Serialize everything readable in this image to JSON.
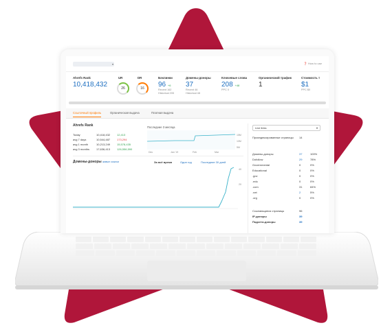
{
  "colors": {
    "star": "#b0163a",
    "accent_blue": "#1e6fc0",
    "accent_orange": "#ff7a00",
    "positive": "#30a14e",
    "negative": "#e03b3b",
    "chart_line": "#39b2c9"
  },
  "header": {
    "how_to_use": "How to use"
  },
  "metrics": {
    "ahrefs_rank": {
      "label": "Ahrefs Rank",
      "value": "10,418,432"
    },
    "ur": {
      "label": "UR",
      "value": "26"
    },
    "dr": {
      "label": "DR",
      "value": "16"
    },
    "backlinks": {
      "label": "Бэклинки",
      "value": "96",
      "delta": "+6",
      "recent": "Recent 162",
      "historical": "Historical 205"
    },
    "ref_domains": {
      "label": "Домены-доноры",
      "value": "37",
      "recent": "Recent 46",
      "historical": "Historical 48"
    },
    "keywords": {
      "label": "Ключевые слова",
      "value": "208",
      "delta": "+48",
      "ppc": "PPC 0"
    },
    "organic_traffic": {
      "label": "Органический трафик",
      "value": "1"
    },
    "traffic_cost": {
      "label": "Стоимость т",
      "value": "$1",
      "ppc": "PPC $0"
    }
  },
  "tabs": [
    "Ссылочный профиль",
    "Органическая выдача",
    "Платная выдача"
  ],
  "rank_panel": {
    "title": "Ahrefs Rank",
    "chart_label": "Последние 3 месяца",
    "rows": [
      {
        "period": "Today",
        "value": "10,418,432",
        "change": "12,413",
        "dir": "pos"
      },
      {
        "period": "avg 7 days",
        "value": "10,544,487",
        "change": "173,294",
        "dir": "neg"
      },
      {
        "period": "avg 1 month",
        "value": "10,213,249",
        "change": "15,578,435",
        "dir": "pos"
      },
      {
        "period": "avg 3 months",
        "value": "17,636,413",
        "change": "126,556,590",
        "dir": "pos"
      }
    ],
    "axis_months": [
      "Dec",
      "Jan '19",
      "Feb",
      "Mar"
    ],
    "axis_y": [
      "5M",
      "10M",
      "15M"
    ]
  },
  "domains_panel": {
    "title": "Домены-доноры",
    "subtitle": "живые ссылки",
    "ranges": [
      "За всё время",
      "Один год",
      "Последние 30 дней"
    ],
    "axis_y": [
      "40",
      "20"
    ]
  },
  "right_panel": {
    "select_value": "Live links",
    "indexed_pages": {
      "label": "Проиндексированные страницы",
      "value": "14"
    },
    "ref_domains_label": "Домены-доноры",
    "ref_domains": {
      "value": "37",
      "pct": "100%"
    },
    "rows": [
      {
        "label": "Dofollow",
        "value": "29",
        "pct": "78%",
        "link": true
      },
      {
        "label": "Governmental",
        "value": "0",
        "pct": "0%",
        "link": false
      },
      {
        "label": "Educational",
        "value": "0",
        "pct": "0%",
        "link": false
      },
      {
        "label": ".gov",
        "value": "0",
        "pct": "0%",
        "link": false
      },
      {
        "label": ".edu",
        "value": "0",
        "pct": "0%",
        "link": false
      },
      {
        "label": ".com",
        "value": "31",
        "pct": "84%",
        "link": false
      },
      {
        "label": ".net",
        "value": "2",
        "pct": "5%",
        "link": true
      },
      {
        "label": ".org",
        "value": "0",
        "pct": "0%",
        "link": false
      }
    ],
    "ref_pages": {
      "label": "Ссылающиеся страницы",
      "value": "96"
    },
    "ip_donors": {
      "label": "IP-доноры",
      "value": "39"
    },
    "subnets": {
      "label": "Подсети-доноры",
      "value": "39"
    }
  }
}
